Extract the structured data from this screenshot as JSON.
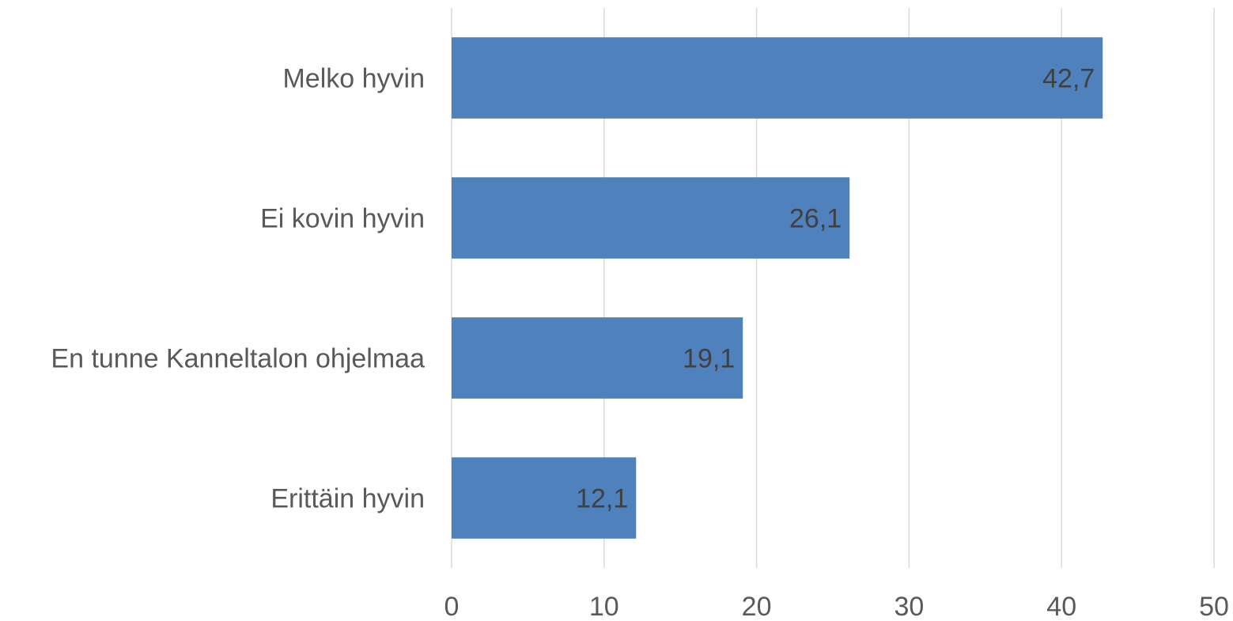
{
  "chart_data": {
    "type": "bar",
    "orientation": "horizontal",
    "categories": [
      "Melko hyvin",
      "Ei kovin hyvin",
      "En tunne Kanneltalon ohjelmaa",
      "Erittäin hyvin"
    ],
    "values": [
      42.7,
      26.1,
      19.1,
      12.1
    ],
    "data_labels": [
      "42,7",
      "26,1",
      "19,1",
      "12,1"
    ],
    "xlim": [
      0,
      50
    ],
    "x_ticks": [
      0,
      10,
      20,
      30,
      40,
      50
    ],
    "x_tick_labels": [
      "0",
      "10",
      "20",
      "30",
      "40",
      "50"
    ],
    "bar_color": "#4f81bd",
    "grid": true,
    "title": "",
    "xlabel": "",
    "ylabel": "",
    "legend": "none"
  }
}
